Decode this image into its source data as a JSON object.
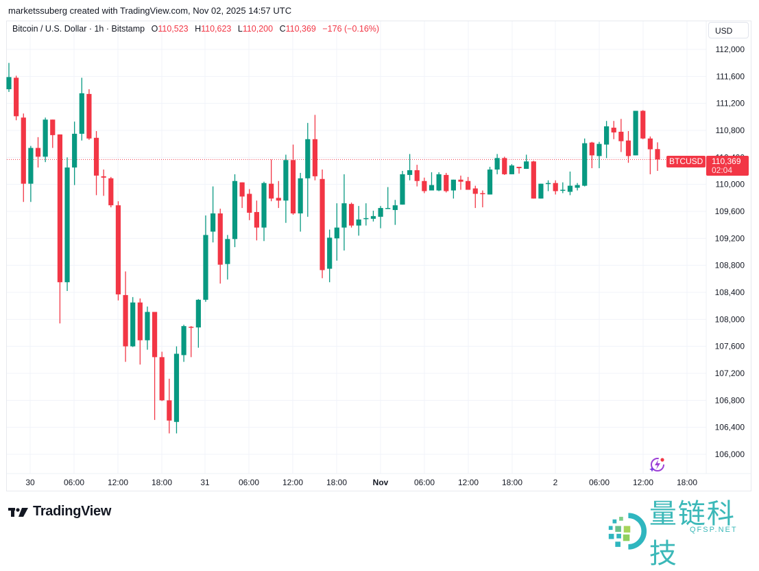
{
  "header": {
    "credit": "marketssuberg created with TradingView.com, Nov 02, 2025 14:57 UTC"
  },
  "legend": {
    "symbol_desc": "Bitcoin / U.S. Dollar · 1h · Bitstamp",
    "open_label": "O",
    "open": "110,523",
    "high_label": "H",
    "high": "110,623",
    "low_label": "L",
    "low": "110,200",
    "close_label": "C",
    "close": "110,369",
    "change": "−176 (−0.16%)"
  },
  "price_scale": {
    "currency": "USD",
    "ticks": [
      "112,000",
      "111,600",
      "111,200",
      "110,800",
      "110,400",
      "110,000",
      "109,600",
      "109,200",
      "108,800",
      "108,400",
      "108,000",
      "107,600",
      "107,200",
      "106,800",
      "106,400",
      "106,000"
    ]
  },
  "last_price": {
    "symbol": "BTCUSD",
    "price": "110,369",
    "countdown": "02:04"
  },
  "colors": {
    "up": "#089981",
    "down": "#f23645",
    "grid": "#f0f3fa",
    "text": "#131722"
  },
  "footer": {
    "brand": "TradingView",
    "watermark_cn": "量链科技",
    "watermark_en": "QFSP.NET"
  },
  "chart_data": {
    "type": "candlestick",
    "title": "Bitcoin / U.S. Dollar · 1h · Bitstamp",
    "xlabel": "",
    "ylabel": "USD",
    "ylim": [
      105800,
      112300
    ],
    "grid": true,
    "x_ticks": [
      {
        "label": "30",
        "bold": false
      },
      {
        "label": "06:00",
        "bold": false
      },
      {
        "label": "12:00",
        "bold": false
      },
      {
        "label": "18:00",
        "bold": false
      },
      {
        "label": "31",
        "bold": false
      },
      {
        "label": "06:00",
        "bold": false
      },
      {
        "label": "12:00",
        "bold": false
      },
      {
        "label": "18:00",
        "bold": false
      },
      {
        "label": "Nov",
        "bold": true
      },
      {
        "label": "06:00",
        "bold": false
      },
      {
        "label": "12:00",
        "bold": false
      },
      {
        "label": "18:00",
        "bold": false
      },
      {
        "label": "2",
        "bold": false
      },
      {
        "label": "06:00",
        "bold": false
      },
      {
        "label": "12:00",
        "bold": false
      },
      {
        "label": "18:00",
        "bold": false
      }
    ],
    "y_ticks": [
      112000,
      111600,
      111200,
      110800,
      110400,
      110000,
      109600,
      109200,
      108800,
      108400,
      108000,
      107600,
      107200,
      106800,
      106400,
      106000
    ],
    "last_price_line": 110369,
    "ohlc_fields": [
      "open",
      "high",
      "low",
      "close"
    ],
    "candles": [
      [
        111410,
        111800,
        111370,
        111590
      ],
      [
        111580,
        111610,
        110950,
        111010
      ],
      [
        110990,
        111050,
        109740,
        110010
      ],
      [
        110010,
        110570,
        109740,
        110540
      ],
      [
        110540,
        110700,
        110250,
        110410
      ],
      [
        110410,
        110990,
        110330,
        110960
      ],
      [
        110960,
        110960,
        110540,
        110730
      ],
      [
        110740,
        110740,
        107940,
        108550
      ],
      [
        108550,
        110400,
        108420,
        110250
      ],
      [
        110250,
        110930,
        109990,
        110750
      ],
      [
        110750,
        111580,
        110650,
        111350
      ],
      [
        111340,
        111410,
        110660,
        110680
      ],
      [
        110690,
        110790,
        109840,
        110130
      ],
      [
        110120,
        110220,
        109830,
        110100
      ],
      [
        110090,
        110110,
        109660,
        109690
      ],
      [
        109690,
        109750,
        108280,
        108370
      ],
      [
        108360,
        108710,
        107370,
        107600
      ],
      [
        107600,
        108330,
        107590,
        108250
      ],
      [
        108250,
        108310,
        107330,
        107690
      ],
      [
        107690,
        108190,
        107550,
        108110
      ],
      [
        108110,
        108110,
        106510,
        107440
      ],
      [
        107440,
        107520,
        106790,
        106800
      ],
      [
        106800,
        107120,
        106310,
        106500
      ],
      [
        106480,
        107600,
        106310,
        107490
      ],
      [
        107470,
        107920,
        107370,
        107900
      ],
      [
        107890,
        107900,
        107440,
        107880
      ],
      [
        107880,
        108300,
        107580,
        108290
      ],
      [
        108290,
        109540,
        108260,
        109250
      ],
      [
        109300,
        109970,
        109140,
        109570
      ],
      [
        109570,
        109640,
        108530,
        108810
      ],
      [
        108820,
        109250,
        108590,
        109190
      ],
      [
        109190,
        110150,
        109070,
        110050
      ],
      [
        110030,
        110030,
        109650,
        109820
      ],
      [
        109860,
        109930,
        109470,
        109580
      ],
      [
        109590,
        109760,
        109170,
        109360
      ],
      [
        109360,
        110040,
        109160,
        110020
      ],
      [
        110010,
        110370,
        109750,
        109790
      ],
      [
        109800,
        110050,
        109650,
        109760
      ],
      [
        109760,
        110440,
        109430,
        110360
      ],
      [
        110360,
        110590,
        109550,
        109570
      ],
      [
        109570,
        110170,
        109300,
        110090
      ],
      [
        110090,
        110910,
        109520,
        110670
      ],
      [
        110670,
        111030,
        110060,
        110120
      ],
      [
        110080,
        110220,
        108610,
        108730
      ],
      [
        108750,
        109330,
        108550,
        109210
      ],
      [
        109200,
        109720,
        108870,
        109360
      ],
      [
        109360,
        110150,
        109020,
        109720
      ],
      [
        109710,
        109730,
        109360,
        109390
      ],
      [
        109390,
        109680,
        109240,
        109480
      ],
      [
        109490,
        109720,
        109390,
        109500
      ],
      [
        109490,
        109610,
        109450,
        109530
      ],
      [
        109520,
        109680,
        109350,
        109650
      ],
      [
        109640,
        109960,
        109640,
        109650
      ],
      [
        109620,
        109770,
        109400,
        109690
      ],
      [
        109700,
        110200,
        109700,
        110150
      ],
      [
        110140,
        110450,
        110060,
        110210
      ],
      [
        110210,
        110290,
        109970,
        110050
      ],
      [
        110050,
        110100,
        109870,
        109900
      ],
      [
        109910,
        110180,
        109910,
        109990
      ],
      [
        109910,
        110180,
        109900,
        110150
      ],
      [
        110140,
        110170,
        109880,
        109900
      ],
      [
        109910,
        110070,
        109790,
        110070
      ],
      [
        110070,
        110130,
        109920,
        110040
      ],
      [
        110050,
        110110,
        109920,
        109920
      ],
      [
        109940,
        109980,
        109650,
        109860
      ],
      [
        109870,
        109910,
        109660,
        109860
      ],
      [
        109850,
        110260,
        109850,
        110220
      ],
      [
        110220,
        110450,
        110150,
        110390
      ],
      [
        110390,
        110410,
        110140,
        110150
      ],
      [
        110150,
        110300,
        110150,
        110280
      ],
      [
        110260,
        110260,
        110160,
        110240
      ],
      [
        110230,
        110440,
        110230,
        110340
      ],
      [
        110340,
        110350,
        109790,
        109790
      ],
      [
        109790,
        110010,
        109790,
        110010
      ],
      [
        110010,
        110060,
        109900,
        110020
      ],
      [
        110020,
        110060,
        109850,
        109900
      ],
      [
        109910,
        110030,
        109870,
        109920
      ],
      [
        109890,
        110190,
        109840,
        109980
      ],
      [
        109950,
        110020,
        109910,
        109990
      ],
      [
        109980,
        110680,
        109970,
        110610
      ],
      [
        110620,
        110630,
        110240,
        110430
      ],
      [
        110420,
        110630,
        110240,
        110600
      ],
      [
        110590,
        110940,
        110390,
        110860
      ],
      [
        110840,
        110940,
        110670,
        110770
      ],
      [
        110780,
        110970,
        110480,
        110640
      ],
      [
        110650,
        110790,
        110320,
        110420
      ],
      [
        110430,
        111090,
        110430,
        111090
      ],
      [
        111090,
        111100,
        110670,
        110680
      ],
      [
        110680,
        110710,
        110150,
        110520
      ],
      [
        110523,
        110623,
        110200,
        110369
      ]
    ]
  }
}
